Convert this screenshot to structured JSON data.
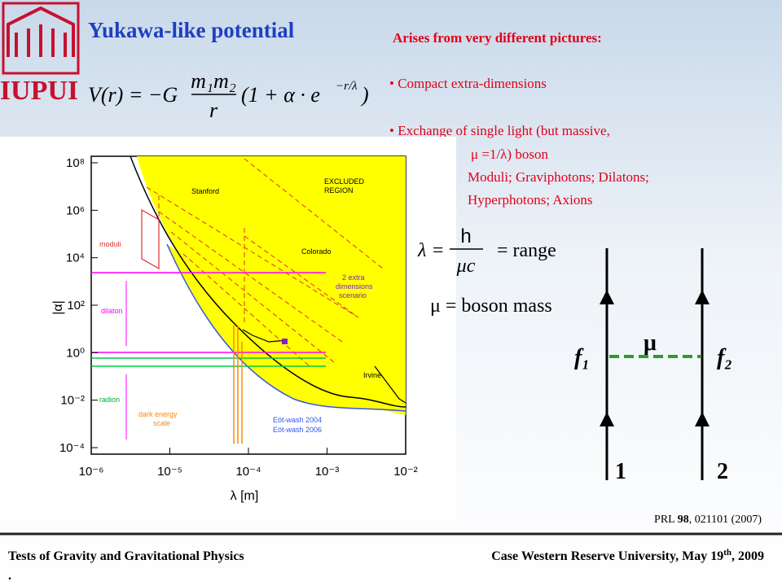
{
  "header": {
    "logo": "IUPUI",
    "title": "Yukawa-like potential"
  },
  "equation": {
    "lhs": "V(r) = −G",
    "numerator": "m₁m₂",
    "denominator": "r",
    "bracket": "(1 + α · e",
    "exponent": "−r/λ",
    "close": ")"
  },
  "notes": {
    "heading": "Arises from very different pictures:",
    "bullets": [
      "• Compact extra-dimensions",
      "• Exchange of single light (but massive,"
    ],
    "continuation": [
      "μ =1/λ) boson",
      "Moduli; Graviphotons; Dilatons;",
      "Hyperphotons; Axions"
    ]
  },
  "relations": {
    "lambda_lhs": "λ =",
    "lambda_num": "h",
    "lambda_den": "μc",
    "lambda_rhs": "= range",
    "mu": "μ = boson mass"
  },
  "diagram": {
    "mediator": "μ",
    "left": "f₁",
    "right": "f₂",
    "bottom_left": "1",
    "bottom_right": "2"
  },
  "plot": {
    "y_label": "|α|",
    "x_label": "λ [m]",
    "y_tick_labels": [
      "10⁸",
      "10⁶",
      "10⁴",
      "10²",
      "10⁰",
      "10⁻²",
      "10⁻⁴"
    ],
    "x_tick_labels": [
      "10⁻⁶",
      "10⁻⁵",
      "10⁻⁴",
      "10⁻³",
      "10⁻²"
    ],
    "annotations": {
      "excluded": [
        "EXCLUDED",
        "REGION"
      ],
      "stanford": "Stanford",
      "colorado": "Colorado",
      "scenario": [
        "2 extra",
        "dimensions",
        "scenario"
      ],
      "moduli": "moduli",
      "dilaton": "dilaton",
      "radion": "radion",
      "dark_energy": [
        "dark energy",
        "scale"
      ],
      "eotwash_2004": "Eöt-wash 2004",
      "eotwash_2006": "Eöt-wash 2006",
      "irvine": "Irvine"
    }
  },
  "reference": {
    "journal": "PRL ",
    "volume": "98",
    "rest": ", 021101 (2007)"
  },
  "footer": {
    "left": "Tests of Gravity and Gravitational Physics",
    "right_main": "Case Western Reserve University, May 19",
    "right_sup": "th",
    "right_end": ", 2009",
    "dot": "."
  }
}
